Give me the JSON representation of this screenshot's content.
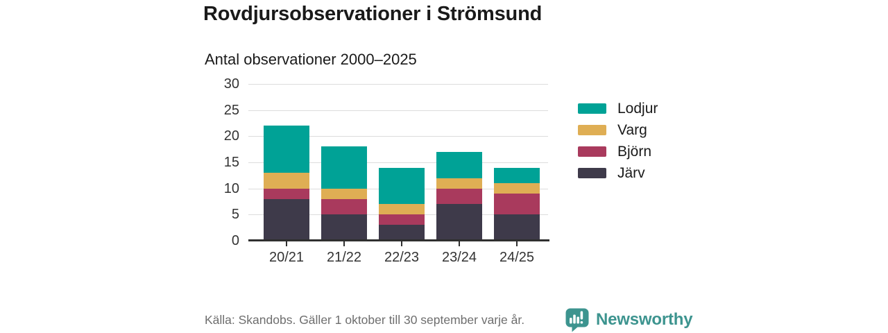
{
  "header": {
    "title": "Rovdjursobservationer i Strömsund",
    "subtitle": "Antal observationer 2000–2025"
  },
  "chart_data": {
    "type": "bar",
    "stacked": true,
    "title": "Rovdjursobservationer i Strömsund",
    "subtitle": "Antal observationer 2000–2025",
    "xlabel": "",
    "ylabel": "",
    "categories": [
      "20/21",
      "21/22",
      "22/23",
      "23/24",
      "24/25"
    ],
    "series": [
      {
        "name": "Järv",
        "color": "#3e3a4a",
        "values": [
          8,
          5,
          3,
          7,
          5
        ]
      },
      {
        "name": "Björn",
        "color": "#a93a5d",
        "values": [
          2,
          3,
          2,
          3,
          4
        ]
      },
      {
        "name": "Varg",
        "color": "#dfae54",
        "values": [
          3,
          2,
          2,
          2,
          2
        ]
      },
      {
        "name": "Lodjur",
        "color": "#00a296",
        "values": [
          9,
          8,
          7,
          5,
          3
        ]
      }
    ],
    "totals": [
      22,
      18,
      14,
      17,
      14
    ],
    "ylim": [
      0,
      30
    ],
    "yticks": [
      0,
      5,
      10,
      15,
      20,
      25,
      30
    ],
    "grid": true,
    "legend_position": "right",
    "legend_order": [
      "Lodjur",
      "Varg",
      "Björn",
      "Järv"
    ]
  },
  "footer": {
    "source": "Källa: Skandobs. Gäller 1 oktober till 30 september varje år.",
    "brand": "Newsworthy",
    "brand_color": "#3d948f",
    "logo_icon": "newsworthy-speech-bubble-bar-chart"
  }
}
